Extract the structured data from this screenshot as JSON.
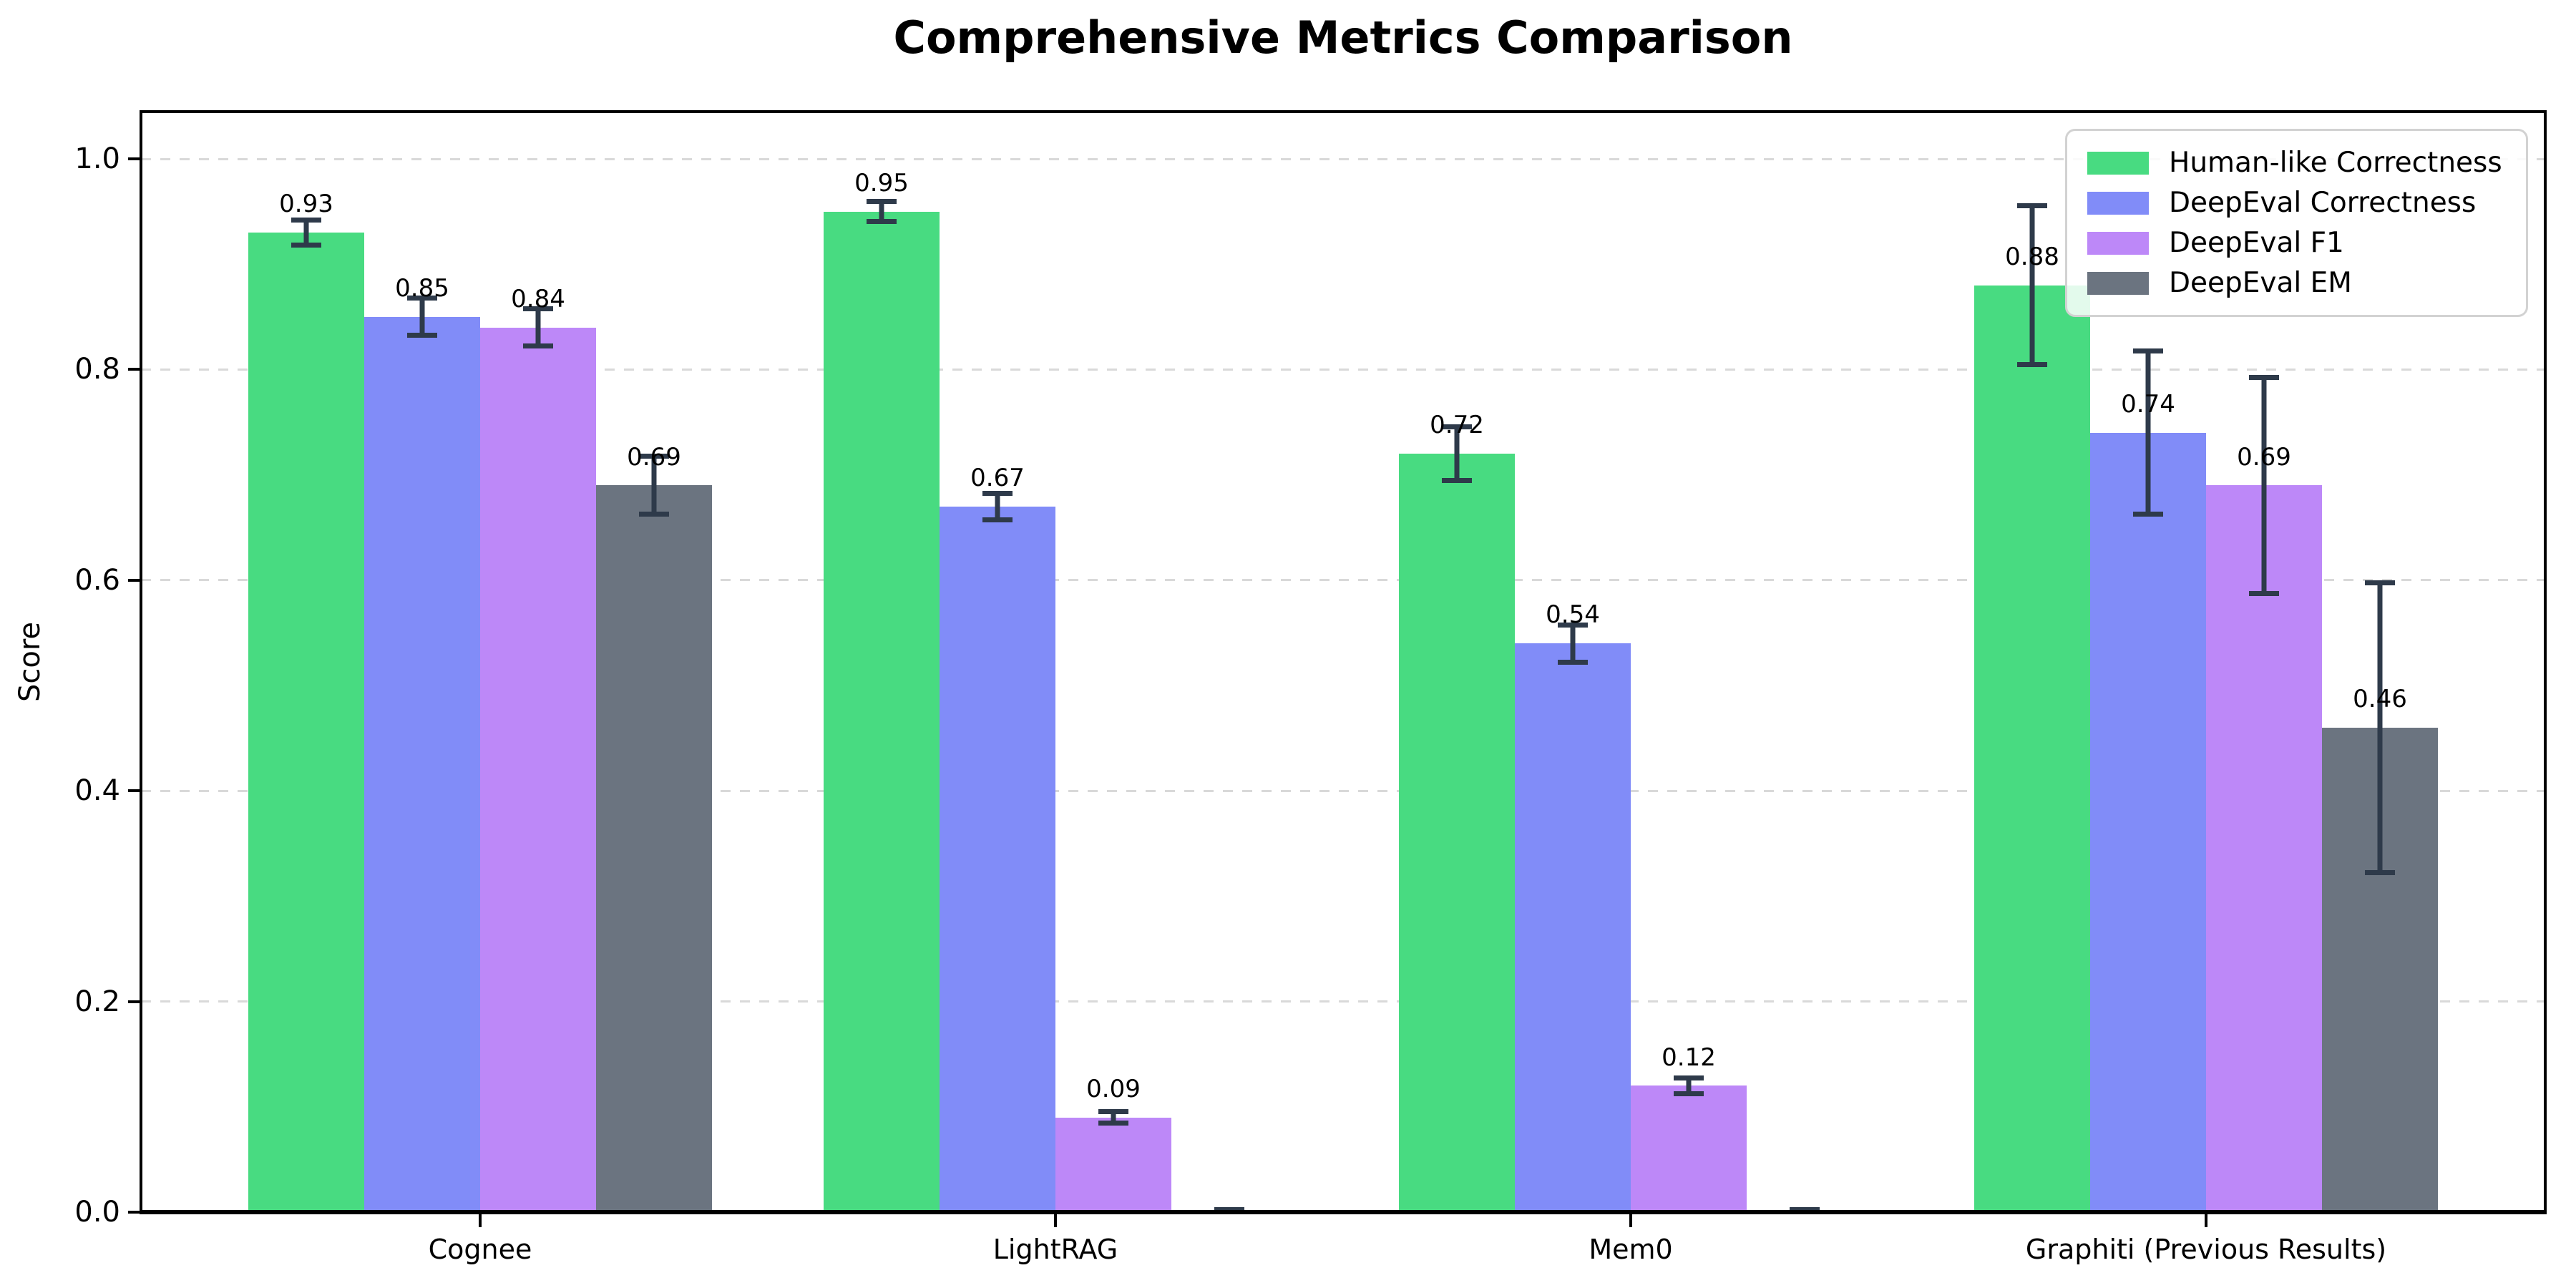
{
  "page": {
    "background": "#ffffff"
  },
  "chart_data": {
    "type": "bar",
    "title": "Comprehensive Metrics Comparison",
    "ylabel": "Score",
    "xlabel": "",
    "categories": [
      "Cognee",
      "LightRAG",
      "Mem0",
      "Graphiti (Previous Results)"
    ],
    "series": [
      {
        "name": "Human-like Correctness",
        "color": "#48db81",
        "values": [
          0.93,
          0.95,
          0.72,
          0.88
        ],
        "errors": [
          0.014,
          0.012,
          0.028,
          0.078
        ],
        "bar_labels": [
          "0.93",
          "0.95",
          "0.72",
          "0.88"
        ]
      },
      {
        "name": "DeepEval Correctness",
        "color": "#818cf8",
        "values": [
          0.85,
          0.67,
          0.54,
          0.74
        ],
        "errors": [
          0.02,
          0.015,
          0.02,
          0.08
        ],
        "bar_labels": [
          "0.85",
          "0.67",
          "0.54",
          "0.74"
        ]
      },
      {
        "name": "DeepEval F1",
        "color": "#bd88f8",
        "values": [
          0.84,
          0.09,
          0.12,
          0.69
        ],
        "errors": [
          0.02,
          0.008,
          0.01,
          0.105
        ],
        "bar_labels": [
          "0.84",
          "0.09",
          "0.12",
          "0.69"
        ]
      },
      {
        "name": "DeepEval EM",
        "color": "#6b7480",
        "values": [
          0.69,
          0.0,
          0.0,
          0.46
        ],
        "errors": [
          0.03,
          0.004,
          0.004,
          0.14
        ],
        "bar_labels": [
          "0.69",
          "",
          "",
          "0.46"
        ]
      }
    ],
    "yticks": [
      {
        "value": 0.0,
        "label": "0.0"
      },
      {
        "value": 0.2,
        "label": "0.2"
      },
      {
        "value": 0.4,
        "label": "0.4"
      },
      {
        "value": 0.6,
        "label": "0.6"
      },
      {
        "value": 0.8,
        "label": "0.8"
      },
      {
        "value": 1.0,
        "label": "1.0"
      }
    ],
    "ylim": [
      0,
      1.045
    ],
    "grid": {
      "axis": "y",
      "style": "dashed",
      "color": "#d9d9d9"
    },
    "legend_position": "upper right",
    "colors": {
      "error_bar": "#2e3a4a",
      "spine": "#000000",
      "text": "#000000"
    }
  }
}
